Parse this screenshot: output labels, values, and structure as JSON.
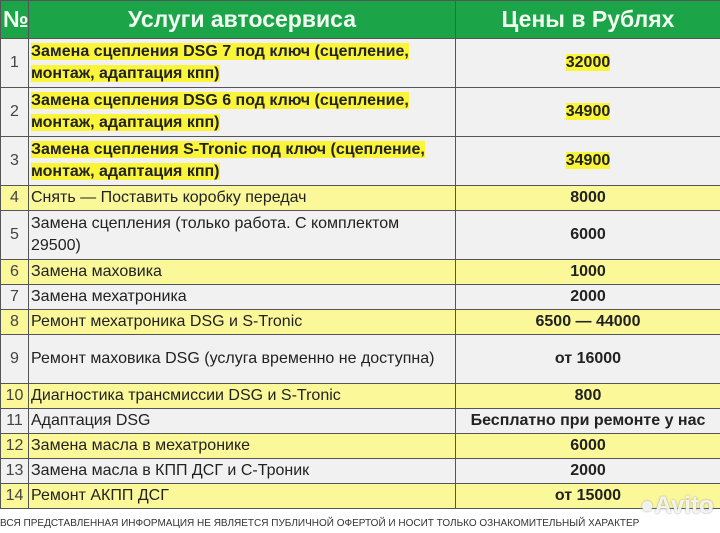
{
  "header": {
    "num": "№",
    "service": "Услуги автосервиса",
    "price": "Цены в Рублях"
  },
  "rows": [
    {
      "n": "1",
      "service": "Замена сцепления DSG 7 под ключ (сцепление, монтаж, адаптация кпп)",
      "price": "32000"
    },
    {
      "n": "2",
      "service": "Замена сцепления DSG 6 под ключ (сцепление, монтаж, адаптация кпп)",
      "price": "34900"
    },
    {
      "n": "3",
      "service": "Замена сцепления S-Tronic под ключ (сцепление, монтаж, адаптация кпп)",
      "price": "34900"
    },
    {
      "n": "4",
      "service": "Снять — Поставить коробку передач",
      "price": "8000"
    },
    {
      "n": "5",
      "service": "Замена сцепления (только работа. С комплектом 29500)",
      "price": "6000"
    },
    {
      "n": "6",
      "service": "Замена маховика",
      "price": "1000"
    },
    {
      "n": "7",
      "service": "Замена мехатроника",
      "price": "2000"
    },
    {
      "n": "8",
      "service": "Ремонт мехатроника DSG и S-Tronic",
      "price": "6500 — 44000"
    },
    {
      "n": "9",
      "service": "Ремонт маховика DSG (услуга временно не доступна)",
      "price": "от 16000"
    },
    {
      "n": "10",
      "service": "Диагностика трансмиссии DSG и S-Tronic",
      "price": "800"
    },
    {
      "n": "11",
      "service": "Адаптация DSG",
      "price": "Бесплатно при ремонте у нас"
    },
    {
      "n": "12",
      "service": "Замена масла в мехатронике",
      "price": "6000"
    },
    {
      "n": "13",
      "service": "Замена масла в КПП ДСГ и С-Троник",
      "price": "2000"
    },
    {
      "n": "14",
      "service": "Ремонт АКПП ДСГ",
      "price": "от 15000"
    }
  ],
  "footer": "ВСЯ ПРЕДСТАВЛЕННАЯ ИНФОРМАЦИЯ НЕ ЯВЛЯЕТСЯ ПУБЛИЧНОЙ ОФЕРТОЙ И НОСИТ ТОЛЬКО ОЗНАКОМИТЕЛЬНЫЙ ХАРАКТЕР",
  "watermark": "Avito",
  "colors": {
    "header": "#1ba548",
    "highlight": "#fbf53a",
    "yellow_row": "#fbf89a"
  }
}
